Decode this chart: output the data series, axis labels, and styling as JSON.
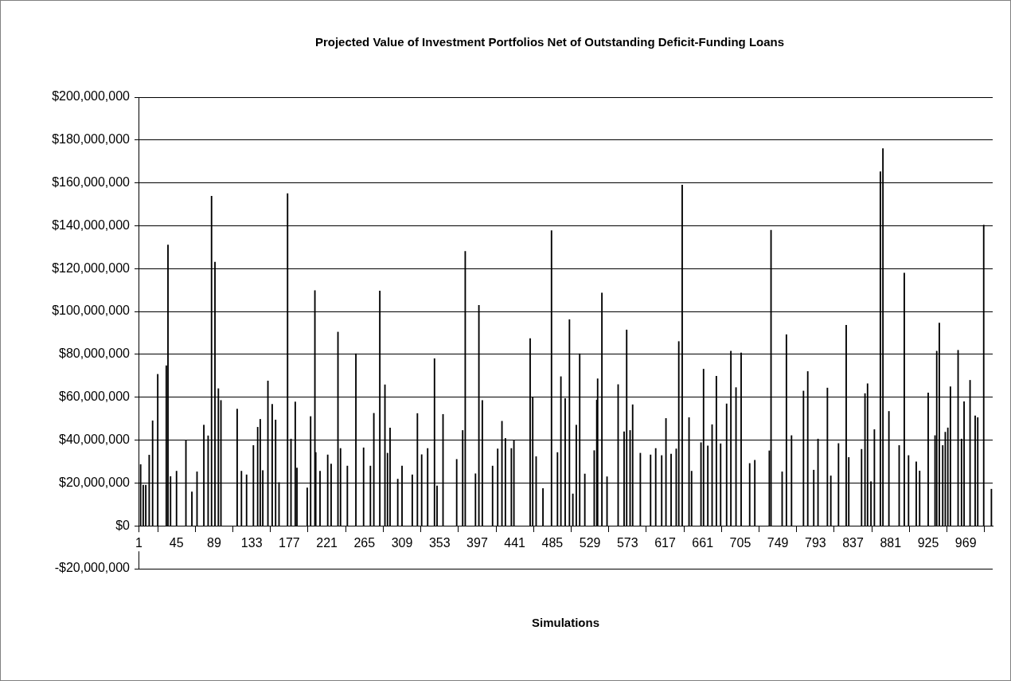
{
  "chart_data": {
    "type": "bar",
    "title": "Projected Value of Investment Portfolios Net of Outstanding Deficit-Funding Loans",
    "xlabel": "Simulations",
    "color": "#000000",
    "x": [
      3,
      6,
      9,
      13,
      17,
      23,
      33,
      35,
      38,
      45,
      56,
      63,
      69,
      77,
      82,
      86,
      90,
      94,
      97,
      116,
      121,
      127,
      135,
      140,
      143,
      146,
      152,
      157,
      161,
      165,
      175,
      179,
      184,
      186,
      198,
      202,
      207,
      208,
      213,
      222,
      226,
      234,
      237,
      245,
      255,
      264,
      272,
      276,
      283,
      289,
      292,
      295,
      304,
      309,
      321,
      327,
      332,
      339,
      347,
      350,
      357,
      373,
      380,
      383,
      395,
      399,
      403,
      415,
      421,
      426,
      430,
      437,
      440,
      459,
      462,
      466,
      474,
      484,
      491,
      495,
      500,
      505,
      509,
      513,
      517,
      523,
      534,
      537,
      538,
      543,
      549,
      562,
      569,
      572,
      576,
      579,
      588,
      600,
      606,
      613,
      618,
      624,
      630,
      633,
      637,
      645,
      648,
      659,
      662,
      667,
      672,
      677,
      682,
      689,
      694,
      700,
      706,
      716,
      722,
      739,
      741,
      754,
      759,
      765,
      779,
      784,
      791,
      796,
      807,
      811,
      820,
      829,
      832,
      847,
      851,
      854,
      858,
      862,
      869,
      872,
      879,
      891,
      897,
      902,
      911,
      915,
      925,
      933,
      935,
      938,
      942,
      945,
      948,
      951,
      960,
      964,
      967,
      974,
      980,
      983,
      990,
      999
    ],
    "values": [
      28600000,
      19000000,
      19000000,
      33000000,
      49000000,
      70700000,
      74700000,
      131000000,
      23000000,
      25500000,
      40000000,
      15800000,
      25200000,
      47000000,
      42000000,
      153800000,
      123000000,
      64000000,
      58500000,
      54500000,
      25500000,
      23800000,
      37500000,
      46000000,
      49700000,
      25800000,
      67600000,
      56700000,
      49400000,
      20200000,
      155000000,
      40500000,
      57800000,
      27000000,
      17700000,
      51000000,
      109800000,
      34200000,
      25500000,
      33100000,
      28800000,
      90400000,
      36100000,
      27900000,
      80300000,
      36400000,
      27900000,
      52500000,
      109600000,
      65800000,
      33900000,
      45700000,
      21800000,
      27900000,
      23800000,
      52400000,
      33200000,
      36100000,
      78000000,
      18600000,
      52000000,
      31000000,
      44500000,
      128100000,
      24300000,
      102900000,
      58500000,
      27900000,
      35900000,
      48800000,
      40800000,
      36100000,
      40000000,
      87400000,
      59800000,
      32300000,
      17400000,
      137700000,
      34200000,
      69600000,
      59400000,
      96200000,
      14900000,
      47000000,
      80300000,
      24200000,
      35100000,
      58700000,
      68600000,
      108600000,
      22900000,
      65900000,
      43900000,
      91400000,
      44500000,
      56500000,
      33900000,
      33100000,
      36100000,
      32800000,
      50100000,
      33500000,
      35900000,
      86000000,
      159000000,
      50500000,
      25500000,
      38800000,
      73100000,
      37300000,
      47200000,
      69800000,
      38300000,
      56900000,
      81500000,
      64500000,
      80700000,
      29100000,
      30600000,
      35000000,
      137900000,
      25200000,
      89200000,
      42100000,
      62900000,
      72000000,
      26000000,
      40500000,
      64300000,
      23300000,
      38400000,
      93600000,
      31900000,
      35700000,
      61700000,
      66300000,
      20600000,
      44900000,
      165200000,
      176000000,
      53400000,
      37500000,
      117900000,
      32800000,
      29900000,
      25600000,
      62000000,
      42100000,
      81500000,
      94600000,
      37500000,
      43700000,
      45700000,
      64900000,
      81900000,
      40500000,
      57900000,
      67900000,
      51300000,
      50500000,
      140300000,
      17100000
    ],
    "xlim": [
      0.5,
      1000.5
    ],
    "xticks": [
      1,
      45,
      89,
      133,
      177,
      221,
      265,
      309,
      353,
      397,
      441,
      485,
      529,
      573,
      617,
      661,
      705,
      749,
      793,
      837,
      881,
      925,
      969
    ],
    "ylim": [
      -20000000,
      200000000
    ],
    "yticks": [
      {
        "value": -20000000,
        "label": "-$20,000,000"
      },
      {
        "value": 0,
        "label": "$0"
      },
      {
        "value": 20000000,
        "label": "$20,000,000"
      },
      {
        "value": 40000000,
        "label": "$40,000,000"
      },
      {
        "value": 60000000,
        "label": "$60,000,000"
      },
      {
        "value": 80000000,
        "label": "$80,000,000"
      },
      {
        "value": 100000000,
        "label": "$100,000,000"
      },
      {
        "value": 120000000,
        "label": "$120,000,000"
      },
      {
        "value": 140000000,
        "label": "$140,000,000"
      },
      {
        "value": 160000000,
        "label": "$160,000,000"
      },
      {
        "value": 180000000,
        "label": "$180,000,000"
      },
      {
        "value": 200000000,
        "label": "$200,000,000"
      }
    ],
    "grid": "y",
    "legend": false
  }
}
